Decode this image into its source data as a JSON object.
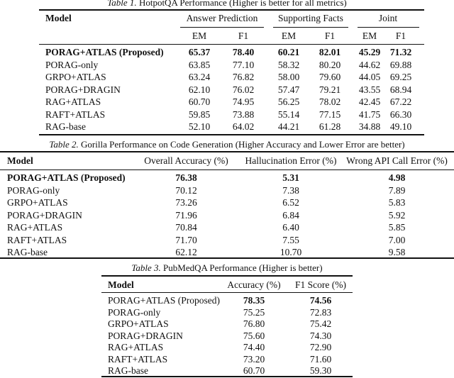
{
  "table1": {
    "caption_label": "Table 1.",
    "caption_text": " HotpotQA Performance (Higher is better for all metrics)",
    "header": {
      "model": "Model",
      "groups": [
        "Answer Prediction",
        "Supporting Facts",
        "Joint"
      ],
      "subcols": [
        "EM",
        "F1",
        "EM",
        "F1",
        "EM",
        "F1"
      ]
    },
    "rows": [
      {
        "model": "PORAG+ATLAS (Proposed)",
        "values": [
          "65.37",
          "78.40",
          "60.21",
          "82.01",
          "45.29",
          "71.32"
        ],
        "bold": true
      },
      {
        "model": "PORAG-only",
        "values": [
          "63.85",
          "77.10",
          "58.32",
          "80.20",
          "44.62",
          "69.88"
        ]
      },
      {
        "model": "GRPO+ATLAS",
        "values": [
          "63.24",
          "76.82",
          "58.00",
          "79.60",
          "44.05",
          "69.25"
        ]
      },
      {
        "model": "PORAG+DRAGIN",
        "values": [
          "62.10",
          "76.02",
          "57.47",
          "79.21",
          "43.55",
          "68.94"
        ]
      },
      {
        "model": "RAG+ATLAS",
        "values": [
          "60.70",
          "74.95",
          "56.25",
          "78.02",
          "42.45",
          "67.22"
        ]
      },
      {
        "model": "RAFT+ATLAS",
        "values": [
          "59.85",
          "73.88",
          "55.14",
          "77.15",
          "41.75",
          "66.30"
        ]
      },
      {
        "model": "RAG-base",
        "values": [
          "52.10",
          "64.02",
          "44.21",
          "61.28",
          "34.88",
          "49.10"
        ]
      }
    ]
  },
  "table2": {
    "caption_label": "Table 2.",
    "caption_text": " Gorilla Performance on Code Generation (Higher Accuracy and Lower Error are better)",
    "header": [
      "Model",
      "Overall Accuracy (%)",
      "Hallucination Error (%)",
      "Wrong API Call Error (%)"
    ],
    "rows": [
      {
        "model": "PORAG+ATLAS (Proposed)",
        "values": [
          "76.38",
          "5.31",
          "4.98"
        ],
        "bold": true
      },
      {
        "model": "PORAG-only",
        "values": [
          "70.12",
          "7.38",
          "7.89"
        ]
      },
      {
        "model": "GRPO+ATLAS",
        "values": [
          "73.26",
          "6.52",
          "5.83"
        ]
      },
      {
        "model": "PORAG+DRAGIN",
        "values": [
          "71.96",
          "6.84",
          "5.92"
        ]
      },
      {
        "model": "RAG+ATLAS",
        "values": [
          "70.84",
          "6.40",
          "5.85"
        ]
      },
      {
        "model": "RAFT+ATLAS",
        "values": [
          "71.70",
          "7.55",
          "7.00"
        ]
      },
      {
        "model": "RAG-base",
        "values": [
          "62.12",
          "10.70",
          "9.58"
        ]
      }
    ]
  },
  "table3": {
    "caption_label": "Table 3.",
    "caption_text": " PubMedQA Performance (Higher is better)",
    "header": [
      "Model",
      "Accuracy (%)",
      "F1 Score (%)"
    ],
    "rows": [
      {
        "model": "PORAG+ATLAS (Proposed)",
        "values": [
          "78.35",
          "74.56"
        ],
        "bold_values": true
      },
      {
        "model": "PORAG-only",
        "values": [
          "75.25",
          "72.83"
        ]
      },
      {
        "model": "GRPO+ATLAS",
        "values": [
          "76.80",
          "75.42"
        ]
      },
      {
        "model": "PORAG+DRAGIN",
        "values": [
          "75.60",
          "74.30"
        ]
      },
      {
        "model": "RAG+ATLAS",
        "values": [
          "74.40",
          "72.90"
        ]
      },
      {
        "model": "RAFT+ATLAS",
        "values": [
          "73.20",
          "71.60"
        ]
      },
      {
        "model": "RAG-base",
        "values": [
          "60.70",
          "59.30"
        ]
      }
    ]
  }
}
